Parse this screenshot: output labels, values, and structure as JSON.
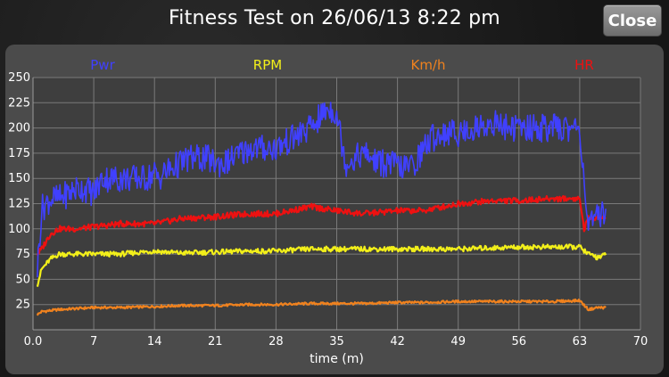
{
  "header": {
    "title": "Fitness Test on 26/06/13 8:22 pm",
    "close_label": "Close"
  },
  "colors": {
    "Pwr": "#4040ff",
    "RPM": "#f2ef1a",
    "Km/h": "#f0821e",
    "HR": "#ee1111",
    "grid": "#7a7a7a"
  },
  "chart_data": {
    "type": "line",
    "xlabel": "time (m)",
    "xlim": [
      0,
      70
    ],
    "ylim": [
      0,
      250
    ],
    "x_ticks": [
      "0.0",
      "7",
      "14",
      "21",
      "28",
      "35",
      "42",
      "49",
      "56",
      "63",
      "70"
    ],
    "y_ticks": [
      "25",
      "50",
      "75",
      "100",
      "125",
      "150",
      "175",
      "200",
      "225",
      "250"
    ],
    "legend_placement": "top",
    "series": [
      {
        "name": "Pwr",
        "x": [
          0.5,
          1,
          2,
          3,
          5,
          6,
          7,
          8,
          10,
          12,
          13,
          14,
          14.5,
          15,
          16,
          17,
          18,
          19,
          20,
          21,
          22,
          24,
          25,
          26,
          28,
          29,
          30,
          31,
          32,
          33,
          34,
          35,
          36,
          38,
          40,
          41,
          43,
          44,
          45,
          46,
          47,
          49,
          51,
          53,
          55,
          57,
          59,
          61,
          63,
          63.5,
          64,
          65,
          66
        ],
        "y": [
          60,
          120,
          130,
          130,
          140,
          140,
          135,
          150,
          150,
          150,
          150,
          155,
          150,
          155,
          160,
          165,
          170,
          170,
          170,
          165,
          165,
          175,
          180,
          180,
          180,
          185,
          190,
          195,
          200,
          210,
          220,
          215,
          165,
          175,
          165,
          165,
          160,
          165,
          180,
          190,
          195,
          195,
          200,
          205,
          200,
          200,
          200,
          200,
          200,
          150,
          100,
          110,
          120
        ]
      },
      {
        "name": "RPM",
        "x": [
          0.5,
          1,
          2,
          3,
          5,
          7,
          10,
          14,
          17,
          21,
          25,
          28,
          32,
          35,
          38,
          42,
          45,
          49,
          56,
          60,
          63,
          64,
          65,
          66
        ],
        "y": [
          45,
          60,
          70,
          75,
          75,
          75,
          75,
          78,
          76,
          77,
          78,
          78,
          80,
          80,
          80,
          80,
          80,
          80,
          82,
          82,
          82,
          75,
          72,
          74
        ]
      },
      {
        "name": "Km/h",
        "x": [
          0.5,
          1,
          3,
          5,
          7,
          10,
          14,
          17,
          21,
          25,
          28,
          32,
          35,
          38,
          42,
          45,
          49,
          56,
          60,
          63,
          64,
          65,
          66
        ],
        "y": [
          15,
          18,
          20,
          21,
          22,
          22,
          23,
          24,
          24,
          25,
          25,
          26,
          26,
          26,
          27,
          27,
          28,
          28,
          28,
          29,
          20,
          22,
          22
        ]
      },
      {
        "name": "HR",
        "x": [
          0.5,
          1,
          2,
          3,
          5,
          7,
          10,
          14,
          17,
          21,
          25,
          28,
          32,
          35,
          38,
          42,
          45,
          49,
          53,
          56,
          60,
          63,
          63.5,
          64,
          65,
          66
        ],
        "y": [
          75,
          80,
          95,
          100,
          100,
          102,
          105,
          105,
          110,
          112,
          115,
          115,
          122,
          118,
          115,
          118,
          118,
          125,
          128,
          128,
          130,
          130,
          100,
          110,
          112,
          110
        ]
      }
    ]
  }
}
